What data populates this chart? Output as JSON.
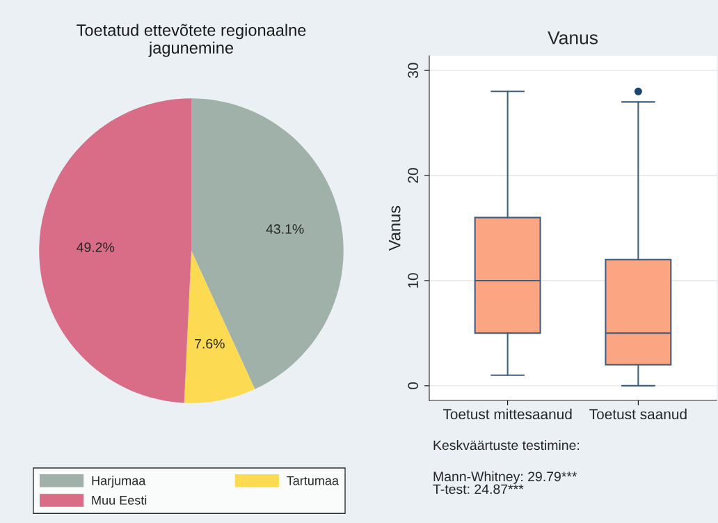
{
  "chart_data": [
    {
      "type": "pie",
      "title": "Toetatud ettevõtete regionaalne\njagunemine",
      "categories": [
        "Harjumaa",
        "Tartumaa",
        "Muu Eesti"
      ],
      "values": [
        43.1,
        7.6,
        49.2
      ],
      "colors": [
        "#9fb1a9",
        "#fcdb52",
        "#d96c86"
      ],
      "value_labels": [
        "43.1%",
        "7.6%",
        "49.2%"
      ],
      "legend": "bottom"
    },
    {
      "type": "box",
      "title": "Vanus",
      "ylabel": "Vanus",
      "categories": [
        "Toetust mittesaanud",
        "Toetust saanud"
      ],
      "color": "#fca583",
      "boxes": [
        {
          "low": 1,
          "q1": 5,
          "median": 10,
          "q3": 16,
          "high": 28
        },
        {
          "low": 0,
          "q1": 2,
          "median": 5,
          "q3": 12,
          "high": 27,
          "outliers": [
            28
          ]
        }
      ],
      "ylim": [
        -1.4,
        31.4
      ],
      "yticks": [
        0,
        10,
        20,
        30
      ],
      "grid": "y",
      "annotations": [
        "Keskväärtuste testimine:",
        "Mann-Whitney: 29.79***\nT-test: 24.87***"
      ]
    }
  ]
}
